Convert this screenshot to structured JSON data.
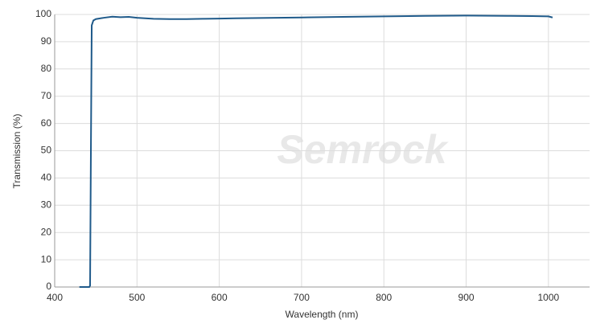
{
  "chart_data": {
    "type": "line",
    "watermark": "Semrock",
    "xlabel": "Wavelength (nm)",
    "ylabel": "Transmission (%)",
    "x": [
      430,
      442,
      443,
      444,
      445,
      447,
      450,
      460,
      470,
      480,
      490,
      500,
      520,
      540,
      560,
      580,
      600,
      620,
      650,
      700,
      750,
      800,
      850,
      900,
      950,
      980,
      1000,
      1005
    ],
    "series": [
      {
        "color": "#1f5a8a",
        "values": [
          0,
          0,
          0.5,
          50,
          96,
          97.8,
          98.3,
          98.8,
          99.2,
          99,
          99.1,
          98.8,
          98.4,
          98.3,
          98.3,
          98.4,
          98.5,
          98.6,
          98.7,
          98.9,
          99.1,
          99.3,
          99.5,
          99.6,
          99.5,
          99.4,
          99.3,
          98.9
        ]
      }
    ],
    "xlim": [
      400,
      1050
    ],
    "xticks": [
      400,
      500,
      600,
      700,
      800,
      900,
      1000
    ],
    "ylim": [
      0,
      100
    ],
    "yticks": [
      0,
      10,
      20,
      30,
      40,
      50,
      60,
      70,
      80,
      90,
      100
    ],
    "grid": true
  }
}
